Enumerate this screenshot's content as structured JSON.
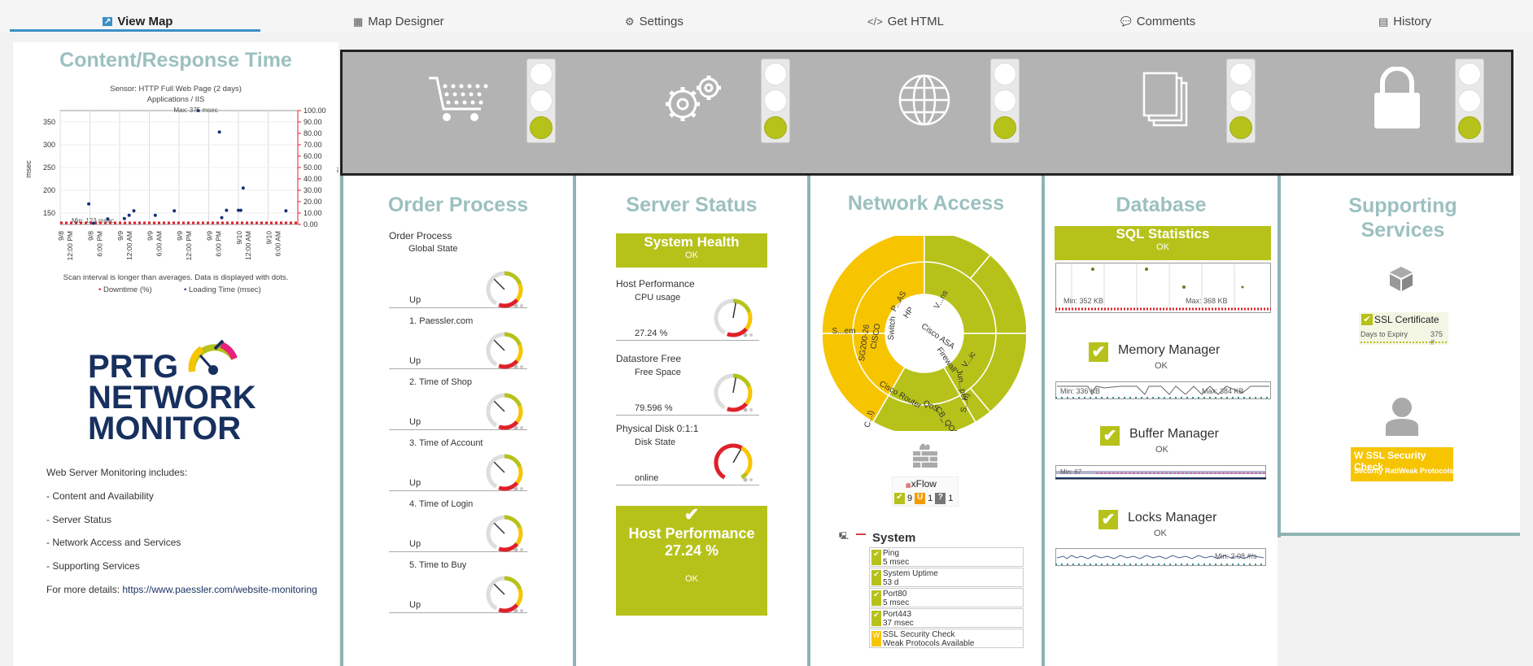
{
  "tabs": [
    {
      "label": "View Map",
      "icon": "map-icon",
      "glyph": "↗"
    },
    {
      "label": "Map Designer",
      "icon": "designer-icon",
      "glyph": "▦"
    },
    {
      "label": "Settings",
      "icon": "gear-icon",
      "glyph": "⚙"
    },
    {
      "label": "Get HTML",
      "icon": "code-icon",
      "glyph": "</>"
    },
    {
      "label": "Comments",
      "icon": "comment-icon",
      "glyph": "💬"
    },
    {
      "label": "History",
      "icon": "history-icon",
      "glyph": "▤"
    }
  ],
  "left": {
    "title": "Content/Response Time",
    "chart_sensor": "Sensor: HTTP Full Web Page (2 days)",
    "chart_group": "Applications / IIS",
    "chart_note": "Scan interval is longer than averages. Data is displayed with dots.",
    "legend_downtime": "Downtime (%)",
    "legend_loading": "Loading Time (msec)",
    "max_label": "Max: 375 msec",
    "min_label": "Min: 123 msec",
    "ylabel_left": "msec",
    "ylabel_right": "%",
    "logo_line1": "PRTG",
    "logo_line2": "NETWORK",
    "logo_line3": "MONITOR",
    "desc_title": "Web Server Monitoring includes:",
    "desc_items": [
      "- Content and Availability",
      "- Server Status",
      "- Network Access and Services",
      "- Supporting Services"
    ],
    "more_label": "For more details:",
    "more_link": "https://www.paessler.com/website-monitoring"
  },
  "chart_data": {
    "type": "scatter",
    "title": "Sensor: HTTP Full Web Page (2 days)",
    "subtitle": "Applications / IIS",
    "xlabel": "",
    "ylabel": "msec",
    "y2label": "%",
    "ylim": [
      125,
      375
    ],
    "y2lim": [
      0,
      100
    ],
    "y_ticks": [
      150,
      200,
      250,
      300,
      350
    ],
    "y2_ticks": [
      "100.00",
      "90.00",
      "80.00",
      "70.00",
      "60.00",
      "50.00",
      "40.00",
      "30.00",
      "20.00",
      "10.00",
      "0.00"
    ],
    "x_ticks": [
      "9/8",
      "12:00 PM",
      "9/8",
      "6:00 PM",
      "9/9",
      "12:00 AM",
      "9/9",
      "6:00 AM",
      "9/9",
      "12:00 PM",
      "9/9",
      "6:00 PM",
      "9/10",
      "12:00 AM",
      "9/10",
      "6:00 AM"
    ],
    "series": [
      {
        "name": "Loading Time (msec)",
        "color": "#1a2f7a",
        "points": [
          [
            0.12,
            170
          ],
          [
            0.14,
            128
          ],
          [
            0.2,
            137
          ],
          [
            0.27,
            138
          ],
          [
            0.29,
            145
          ],
          [
            0.31,
            155
          ],
          [
            0.4,
            145
          ],
          [
            0.48,
            155
          ],
          [
            0.58,
            375
          ],
          [
            0.67,
            328
          ],
          [
            0.68,
            140
          ],
          [
            0.7,
            156
          ],
          [
            0.75,
            156
          ],
          [
            0.76,
            156
          ],
          [
            0.77,
            205
          ],
          [
            0.95,
            155
          ]
        ]
      },
      {
        "name": "Downtime (%)",
        "color": "#e0202a",
        "value": 0
      }
    ]
  },
  "banner": {
    "items": [
      {
        "icon": "shopping-cart-icon",
        "light": "green"
      },
      {
        "icon": "gears-icon",
        "light": "green"
      },
      {
        "icon": "globe-icon",
        "light": "green"
      },
      {
        "icon": "documents-icon",
        "light": "green"
      },
      {
        "icon": "lock-icon",
        "light": "green"
      }
    ]
  },
  "order": {
    "title": "Order Process",
    "group": "Order Process",
    "rows": [
      {
        "name": "Global State",
        "value": "Up"
      },
      {
        "name": "1. Paessler.com",
        "value": "Up"
      },
      {
        "name": "2. Time of Shop",
        "value": "Up"
      },
      {
        "name": "3. Time of Account",
        "value": "Up"
      },
      {
        "name": "4. Time of Login",
        "value": "Up"
      },
      {
        "name": "5. Time to Buy",
        "value": "Up"
      }
    ]
  },
  "server": {
    "title": "Server Status",
    "health_title": "System Health",
    "health_status": "OK",
    "rows": [
      {
        "group": "Host Performance",
        "name": "CPU usage",
        "value": "27.24 %"
      },
      {
        "group": "Datastore Free",
        "name": "Free Space",
        "value": "79.596 %"
      },
      {
        "group": "Physical Disk 0:1:1",
        "name": "Disk State",
        "value": "online"
      }
    ],
    "big_title": "Host Performance",
    "big_value": "27.24 %",
    "big_status": "OK"
  },
  "network": {
    "title": "Network Access",
    "sunburst_labels": [
      "P...AS",
      "HP",
      "Switch",
      "CISCO",
      "SG200-26",
      "S...em",
      "C...l)",
      "Cisco Router",
      "QoS",
      "CB_QOS",
      "S...n)",
      "Jun...per",
      "V...ic",
      "Firewall",
      "Cisco ASA",
      "V...ns"
    ],
    "xflow_label": "xFlow",
    "xflow_counts": {
      "ok": "9",
      "unusual": "1",
      "unknown": "1"
    },
    "system_title": "System",
    "sensors": [
      {
        "name": "Ping",
        "value": "5 msec",
        "state": "ok"
      },
      {
        "name": "System Uptime",
        "value": "53 d",
        "state": "ok"
      },
      {
        "name": "Port80",
        "value": "5 msec",
        "state": "ok"
      },
      {
        "name": "Port443",
        "value": "37 msec",
        "state": "ok"
      },
      {
        "name": "SSL Security Check",
        "value": "Weak Protocols Available",
        "state": "warning"
      }
    ]
  },
  "database": {
    "title": "Database",
    "sql_title": "SQL Statistics",
    "sql_status": "OK",
    "sql_min": "Min: 352 KB",
    "sql_max": "Max: 368 KB",
    "mem_title": "Memory Manager",
    "mem_status": "OK",
    "mem_min": "Min: 336 KB",
    "mem_max": "Max: 384 KB",
    "buf_title": "Buffer Manager",
    "buf_status": "OK",
    "buf_min": "Min: 67",
    "lock_title": "Locks Manager",
    "lock_status": "OK",
    "lock_min": "Min: 2.08 #/s"
  },
  "support": {
    "title_line1": "Supporting",
    "title_line2": "Services",
    "ssl_cert_label": "SSL Certificate",
    "ssl_cert_sub": "Days to Expiry",
    "ssl_cert_value": "375 #",
    "ssl_check_label": "SSL Security Check",
    "ssl_check_sub": "Security RatiWeak Protocols"
  },
  "colors": {
    "accent": "#3a8fc7",
    "green": "#b6c21a",
    "yellow": "#f7c400",
    "title": "#9cc0c0",
    "separator": "#8fb3b3"
  }
}
